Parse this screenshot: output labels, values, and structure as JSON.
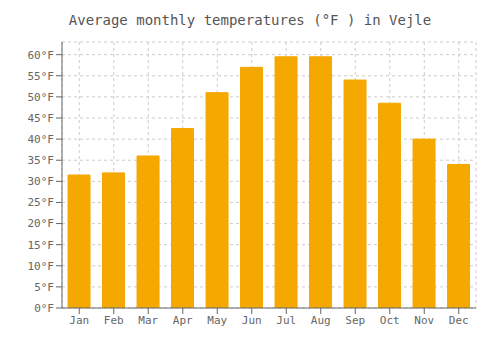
{
  "chart_data": {
    "type": "bar",
    "title": "Average monthly temperatures (°F ) in Vejle",
    "categories": [
      "Jan",
      "Feb",
      "Mar",
      "Apr",
      "May",
      "Jun",
      "Jul",
      "Aug",
      "Sep",
      "Oct",
      "Nov",
      "Dec"
    ],
    "values": [
      31.5,
      32.0,
      36.0,
      42.5,
      51.0,
      57.0,
      59.5,
      59.5,
      54.0,
      48.5,
      40.0,
      34.0
    ],
    "color": "#F5A800",
    "ylim": [
      0,
      63
    ],
    "yticks": [
      {
        "value": 0,
        "label": "0°F"
      },
      {
        "value": 5,
        "label": "5°F"
      },
      {
        "value": 10,
        "label": "10°F"
      },
      {
        "value": 15,
        "label": "15°F"
      },
      {
        "value": 20,
        "label": "20°F"
      },
      {
        "value": 25,
        "label": "25°F"
      },
      {
        "value": 30,
        "label": "30°F"
      },
      {
        "value": 35,
        "label": "35°F"
      },
      {
        "value": 40,
        "label": "40°F"
      },
      {
        "value": 45,
        "label": "45°F"
      },
      {
        "value": 50,
        "label": "50°F"
      },
      {
        "value": 55,
        "label": "55°F"
      },
      {
        "value": 60,
        "label": "60°F"
      }
    ],
    "grid": true
  }
}
